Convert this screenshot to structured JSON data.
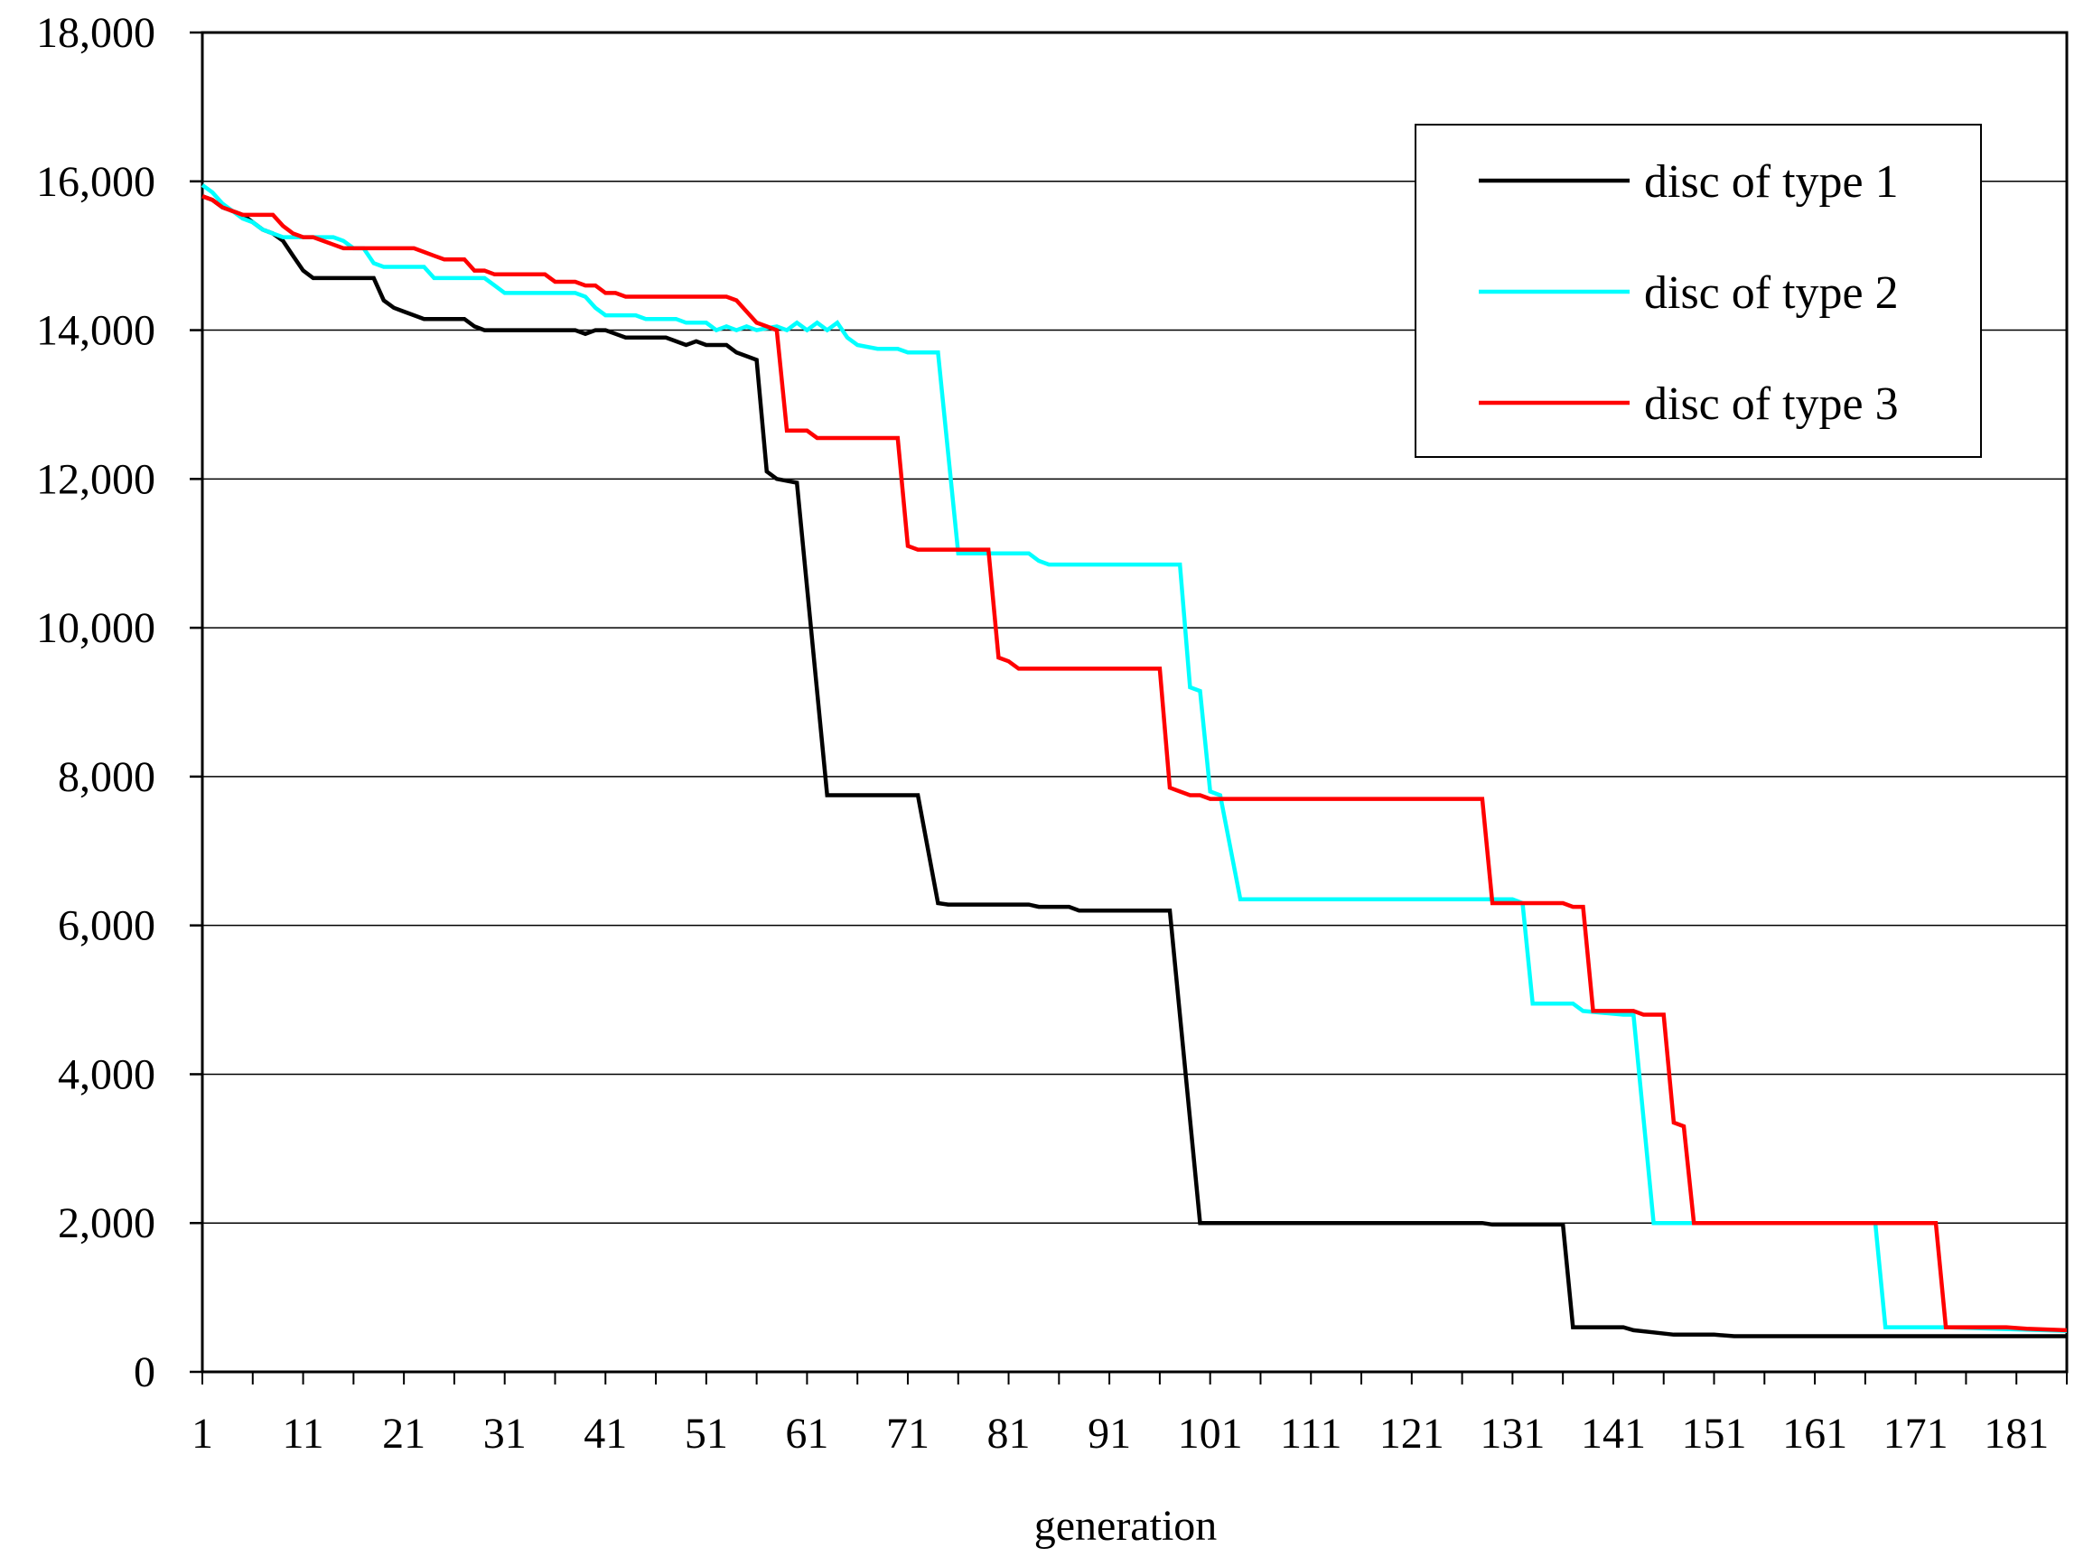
{
  "chart_data": {
    "type": "line",
    "title": "",
    "xlabel": "generation",
    "ylabel": "",
    "xlim": [
      1,
      186
    ],
    "ylim": [
      0,
      18000
    ],
    "grid": true,
    "legend_position": "top-right",
    "x_ticks": [
      1,
      11,
      21,
      31,
      41,
      51,
      61,
      71,
      81,
      91,
      101,
      111,
      121,
      131,
      141,
      151,
      161,
      171,
      181
    ],
    "x_tick_labels": [
      "1",
      "11",
      "21",
      "31",
      "41",
      "51",
      "61",
      "71",
      "81",
      "91",
      "101",
      "111",
      "121",
      "131",
      "141",
      "151",
      "161",
      "171",
      "181"
    ],
    "y_ticks": [
      0,
      2000,
      4000,
      6000,
      8000,
      10000,
      12000,
      14000,
      16000,
      18000
    ],
    "y_tick_labels": [
      "0",
      "2,000",
      "4,000",
      "6,000",
      "8,000",
      "10,000",
      "12,000",
      "14,000",
      "16,000",
      "18,000"
    ],
    "series": [
      {
        "name": "disc of type 1",
        "color": "#000000",
        "points": [
          [
            1,
            15800
          ],
          [
            2,
            15750
          ],
          [
            3,
            15650
          ],
          [
            4,
            15600
          ],
          [
            5,
            15550
          ],
          [
            6,
            15450
          ],
          [
            7,
            15350
          ],
          [
            8,
            15300
          ],
          [
            9,
            15200
          ],
          [
            10,
            15000
          ],
          [
            11,
            14800
          ],
          [
            12,
            14700
          ],
          [
            14,
            14700
          ],
          [
            18,
            14700
          ],
          [
            19,
            14400
          ],
          [
            20,
            14300
          ],
          [
            21,
            14250
          ],
          [
            22,
            14200
          ],
          [
            23,
            14150
          ],
          [
            27,
            14150
          ],
          [
            28,
            14050
          ],
          [
            29,
            14000
          ],
          [
            38,
            14000
          ],
          [
            39,
            13950
          ],
          [
            40,
            14000
          ],
          [
            41,
            14000
          ],
          [
            42,
            13950
          ],
          [
            43,
            13900
          ],
          [
            47,
            13900
          ],
          [
            48,
            13850
          ],
          [
            49,
            13800
          ],
          [
            50,
            13850
          ],
          [
            51,
            13800
          ],
          [
            53,
            13800
          ],
          [
            54,
            13700
          ],
          [
            55,
            13650
          ],
          [
            56,
            13600
          ],
          [
            57,
            12100
          ],
          [
            58,
            12000
          ],
          [
            60,
            11950
          ],
          [
            63,
            7750
          ],
          [
            72,
            7750
          ],
          [
            74,
            6300
          ],
          [
            75,
            6280
          ],
          [
            83,
            6280
          ],
          [
            84,
            6250
          ],
          [
            87,
            6250
          ],
          [
            88,
            6200
          ],
          [
            97,
            6200
          ],
          [
            100,
            2000
          ],
          [
            128,
            2000
          ],
          [
            129,
            1980
          ],
          [
            136,
            1980
          ],
          [
            137,
            600
          ],
          [
            142,
            600
          ],
          [
            143,
            560
          ],
          [
            145,
            530
          ],
          [
            147,
            500
          ],
          [
            151,
            500
          ],
          [
            153,
            480
          ],
          [
            186,
            480
          ]
        ]
      },
      {
        "name": "disc of type 2",
        "color": "#00FFFF",
        "points": [
          [
            1,
            15950
          ],
          [
            2,
            15850
          ],
          [
            3,
            15700
          ],
          [
            4,
            15600
          ],
          [
            5,
            15500
          ],
          [
            6,
            15450
          ],
          [
            7,
            15350
          ],
          [
            8,
            15300
          ],
          [
            9,
            15250
          ],
          [
            11,
            15250
          ],
          [
            12,
            15250
          ],
          [
            14,
            15250
          ],
          [
            15,
            15200
          ],
          [
            16,
            15100
          ],
          [
            17,
            15100
          ],
          [
            18,
            14900
          ],
          [
            19,
            14850
          ],
          [
            23,
            14850
          ],
          [
            24,
            14700
          ],
          [
            29,
            14700
          ],
          [
            30,
            14600
          ],
          [
            31,
            14500
          ],
          [
            38,
            14500
          ],
          [
            39,
            14450
          ],
          [
            40,
            14300
          ],
          [
            41,
            14200
          ],
          [
            44,
            14200
          ],
          [
            45,
            14150
          ],
          [
            48,
            14150
          ],
          [
            49,
            14100
          ],
          [
            51,
            14100
          ],
          [
            52,
            14000
          ],
          [
            53,
            14050
          ],
          [
            54,
            14000
          ],
          [
            55,
            14050
          ],
          [
            56,
            14000
          ],
          [
            58,
            14050
          ],
          [
            59,
            14000
          ],
          [
            60,
            14100
          ],
          [
            61,
            14000
          ],
          [
            62,
            14100
          ],
          [
            63,
            14000
          ],
          [
            64,
            14100
          ],
          [
            65,
            13900
          ],
          [
            66,
            13800
          ],
          [
            68,
            13750
          ],
          [
            70,
            13750
          ],
          [
            71,
            13700
          ],
          [
            73,
            13700
          ],
          [
            74,
            13700
          ],
          [
            76,
            11000
          ],
          [
            83,
            11000
          ],
          [
            84,
            10900
          ],
          [
            85,
            10850
          ],
          [
            87,
            10850
          ],
          [
            98,
            10850
          ],
          [
            99,
            9200
          ],
          [
            100,
            9150
          ],
          [
            101,
            7800
          ],
          [
            102,
            7750
          ],
          [
            104,
            6350
          ],
          [
            131,
            6350
          ],
          [
            132,
            6300
          ],
          [
            133,
            4950
          ],
          [
            137,
            4950
          ],
          [
            138,
            4850
          ],
          [
            142,
            4800
          ],
          [
            143,
            4800
          ],
          [
            145,
            2000
          ],
          [
            167,
            2000
          ],
          [
            168,
            600
          ],
          [
            173,
            600
          ],
          [
            174,
            600
          ],
          [
            186,
            550
          ]
        ]
      },
      {
        "name": "disc of type 3",
        "color": "#FF0000",
        "points": [
          [
            1,
            15800
          ],
          [
            2,
            15750
          ],
          [
            3,
            15650
          ],
          [
            4,
            15600
          ],
          [
            5,
            15550
          ],
          [
            6,
            15550
          ],
          [
            7,
            15550
          ],
          [
            8,
            15550
          ],
          [
            9,
            15400
          ],
          [
            10,
            15300
          ],
          [
            11,
            15250
          ],
          [
            12,
            15250
          ],
          [
            13,
            15200
          ],
          [
            14,
            15150
          ],
          [
            15,
            15100
          ],
          [
            16,
            15100
          ],
          [
            17,
            15100
          ],
          [
            22,
            15100
          ],
          [
            23,
            15050
          ],
          [
            24,
            15000
          ],
          [
            25,
            14950
          ],
          [
            26,
            14950
          ],
          [
            27,
            14950
          ],
          [
            28,
            14800
          ],
          [
            29,
            14800
          ],
          [
            30,
            14750
          ],
          [
            34,
            14750
          ],
          [
            35,
            14750
          ],
          [
            36,
            14650
          ],
          [
            38,
            14650
          ],
          [
            39,
            14600
          ],
          [
            40,
            14600
          ],
          [
            41,
            14500
          ],
          [
            42,
            14500
          ],
          [
            43,
            14450
          ],
          [
            45,
            14450
          ],
          [
            51,
            14450
          ],
          [
            53,
            14450
          ],
          [
            54,
            14400
          ],
          [
            55,
            14250
          ],
          [
            56,
            14100
          ],
          [
            57,
            14050
          ],
          [
            58,
            14000
          ],
          [
            59,
            12650
          ],
          [
            61,
            12650
          ],
          [
            62,
            12550
          ],
          [
            70,
            12550
          ],
          [
            71,
            11100
          ],
          [
            72,
            11050
          ],
          [
            79,
            11050
          ],
          [
            80,
            9600
          ],
          [
            81,
            9550
          ],
          [
            82,
            9450
          ],
          [
            96,
            9450
          ],
          [
            97,
            7850
          ],
          [
            98,
            7800
          ],
          [
            99,
            7750
          ],
          [
            100,
            7750
          ],
          [
            101,
            7700
          ],
          [
            103,
            7700
          ],
          [
            128,
            7700
          ],
          [
            129,
            6300
          ],
          [
            136,
            6300
          ],
          [
            137,
            6250
          ],
          [
            138,
            6250
          ],
          [
            139,
            4850
          ],
          [
            143,
            4850
          ],
          [
            144,
            4800
          ],
          [
            146,
            4800
          ],
          [
            147,
            3350
          ],
          [
            148,
            3300
          ],
          [
            149,
            2000
          ],
          [
            173,
            2000
          ],
          [
            174,
            600
          ],
          [
            180,
            600
          ],
          [
            182,
            580
          ],
          [
            186,
            560
          ]
        ]
      }
    ]
  }
}
